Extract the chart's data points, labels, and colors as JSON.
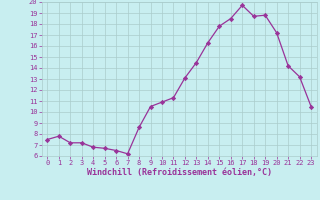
{
  "x": [
    0,
    1,
    2,
    3,
    4,
    5,
    6,
    7,
    8,
    9,
    10,
    11,
    12,
    13,
    14,
    15,
    16,
    17,
    18,
    19,
    20,
    21,
    22,
    23
  ],
  "y": [
    7.5,
    7.8,
    7.2,
    7.2,
    6.8,
    6.7,
    6.5,
    6.2,
    8.6,
    10.5,
    10.9,
    11.3,
    13.1,
    14.5,
    16.3,
    17.8,
    18.5,
    19.7,
    18.7,
    18.8,
    17.2,
    14.2,
    13.2,
    10.5
  ],
  "line_color": "#993399",
  "marker": "D",
  "markersize": 2.2,
  "linewidth": 0.9,
  "background_color": "#c8eef0",
  "grid_color": "#aacccc",
  "xlabel": "Windchill (Refroidissement éolien,°C)",
  "xlabel_color": "#993399",
  "tick_color": "#993399",
  "label_color": "#993399",
  "xlim": [
    -0.5,
    23.5
  ],
  "ylim": [
    6,
    20
  ],
  "yticks": [
    6,
    7,
    8,
    9,
    10,
    11,
    12,
    13,
    14,
    15,
    16,
    17,
    18,
    19,
    20
  ],
  "xticks": [
    0,
    1,
    2,
    3,
    4,
    5,
    6,
    7,
    8,
    9,
    10,
    11,
    12,
    13,
    14,
    15,
    16,
    17,
    18,
    19,
    20,
    21,
    22,
    23
  ],
  "tick_fontsize": 5.0,
  "xlabel_fontsize": 6.0
}
